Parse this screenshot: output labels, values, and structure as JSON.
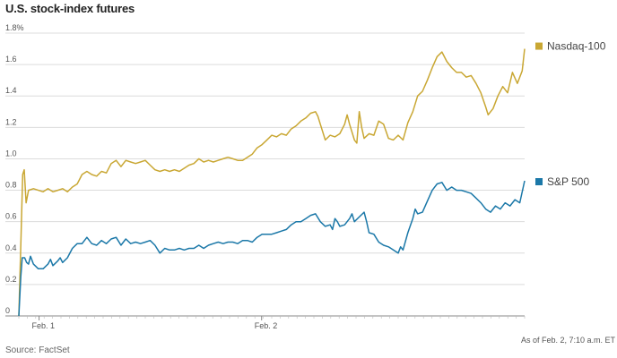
{
  "chart_data": {
    "type": "line",
    "title": "U.S. stock-index futures",
    "yunit": "%",
    "ylim": [
      0,
      1.8
    ],
    "yticks": [
      0,
      0.2,
      0.4,
      0.6,
      0.8,
      1.0,
      1.2,
      1.4,
      1.6,
      1.8
    ],
    "ytick_labels": [
      "0",
      "0.2",
      "0.4",
      "0.6",
      "0.8",
      "1.0",
      "1.2",
      "1.4",
      "1.6",
      "1.8%"
    ],
    "xlim": [
      0,
      1
    ],
    "xticks": [
      {
        "label": "Feb. 1",
        "x": 0.04
      },
      {
        "label": "Feb. 2",
        "x": 0.48
      }
    ],
    "grid": true,
    "legend_position": "right",
    "series": [
      {
        "name": "Nasdaq-100",
        "color": "#c9a733",
        "points": [
          [
            0.0,
            0.0
          ],
          [
            0.004,
            0.45
          ],
          [
            0.008,
            0.9
          ],
          [
            0.011,
            0.93
          ],
          [
            0.015,
            0.72
          ],
          [
            0.02,
            0.8
          ],
          [
            0.03,
            0.81
          ],
          [
            0.04,
            0.8
          ],
          [
            0.05,
            0.79
          ],
          [
            0.06,
            0.81
          ],
          [
            0.07,
            0.79
          ],
          [
            0.08,
            0.8
          ],
          [
            0.09,
            0.81
          ],
          [
            0.1,
            0.79
          ],
          [
            0.11,
            0.82
          ],
          [
            0.12,
            0.84
          ],
          [
            0.13,
            0.9
          ],
          [
            0.14,
            0.92
          ],
          [
            0.15,
            0.9
          ],
          [
            0.16,
            0.89
          ],
          [
            0.17,
            0.92
          ],
          [
            0.18,
            0.91
          ],
          [
            0.19,
            0.97
          ],
          [
            0.2,
            0.99
          ],
          [
            0.21,
            0.95
          ],
          [
            0.22,
            0.99
          ],
          [
            0.23,
            0.98
          ],
          [
            0.24,
            0.97
          ],
          [
            0.25,
            0.98
          ],
          [
            0.26,
            0.99
          ],
          [
            0.27,
            0.96
          ],
          [
            0.28,
            0.93
          ],
          [
            0.29,
            0.92
          ],
          [
            0.3,
            0.93
          ],
          [
            0.31,
            0.92
          ],
          [
            0.32,
            0.93
          ],
          [
            0.33,
            0.92
          ],
          [
            0.34,
            0.94
          ],
          [
            0.35,
            0.96
          ],
          [
            0.36,
            0.97
          ],
          [
            0.37,
            1.0
          ],
          [
            0.38,
            0.98
          ],
          [
            0.39,
            0.99
          ],
          [
            0.4,
            0.98
          ],
          [
            0.41,
            0.99
          ],
          [
            0.42,
            1.0
          ],
          [
            0.43,
            1.01
          ],
          [
            0.44,
            1.0
          ],
          [
            0.45,
            0.99
          ],
          [
            0.46,
            0.99
          ],
          [
            0.47,
            1.01
          ],
          [
            0.48,
            1.03
          ],
          [
            0.49,
            1.07
          ],
          [
            0.5,
            1.09
          ],
          [
            0.51,
            1.12
          ],
          [
            0.52,
            1.15
          ],
          [
            0.53,
            1.14
          ],
          [
            0.54,
            1.16
          ],
          [
            0.55,
            1.15
          ],
          [
            0.56,
            1.19
          ],
          [
            0.57,
            1.21
          ],
          [
            0.58,
            1.24
          ],
          [
            0.59,
            1.26
          ],
          [
            0.6,
            1.29
          ],
          [
            0.61,
            1.3
          ],
          [
            0.615,
            1.27
          ],
          [
            0.62,
            1.22
          ],
          [
            0.63,
            1.12
          ],
          [
            0.64,
            1.15
          ],
          [
            0.65,
            1.14
          ],
          [
            0.66,
            1.16
          ],
          [
            0.67,
            1.22
          ],
          [
            0.675,
            1.28
          ],
          [
            0.68,
            1.22
          ],
          [
            0.69,
            1.12
          ],
          [
            0.695,
            1.1
          ],
          [
            0.7,
            1.3
          ],
          [
            0.705,
            1.2
          ],
          [
            0.71,
            1.13
          ],
          [
            0.72,
            1.16
          ],
          [
            0.73,
            1.15
          ],
          [
            0.74,
            1.24
          ],
          [
            0.75,
            1.22
          ],
          [
            0.76,
            1.13
          ],
          [
            0.77,
            1.12
          ],
          [
            0.78,
            1.15
          ],
          [
            0.79,
            1.12
          ],
          [
            0.8,
            1.23
          ],
          [
            0.81,
            1.3
          ],
          [
            0.82,
            1.4
          ],
          [
            0.83,
            1.43
          ],
          [
            0.84,
            1.5
          ],
          [
            0.85,
            1.58
          ],
          [
            0.86,
            1.65
          ],
          [
            0.87,
            1.68
          ],
          [
            0.88,
            1.62
          ],
          [
            0.89,
            1.58
          ],
          [
            0.9,
            1.55
          ],
          [
            0.91,
            1.55
          ],
          [
            0.92,
            1.52
          ],
          [
            0.93,
            1.53
          ],
          [
            0.94,
            1.48
          ],
          [
            0.95,
            1.42
          ],
          [
            0.96,
            1.33
          ],
          [
            0.965,
            1.28
          ],
          [
            0.975,
            1.32
          ],
          [
            0.985,
            1.4
          ],
          [
            0.995,
            1.46
          ],
          [
            1.005,
            1.42
          ],
          [
            1.015,
            1.55
          ],
          [
            1.025,
            1.48
          ],
          [
            1.035,
            1.56
          ],
          [
            1.04,
            1.7
          ]
        ]
      },
      {
        "name": "S&P 500",
        "color": "#1b78a8",
        "points": [
          [
            0.0,
            0.0
          ],
          [
            0.004,
            0.25
          ],
          [
            0.007,
            0.37
          ],
          [
            0.012,
            0.37
          ],
          [
            0.016,
            0.34
          ],
          [
            0.02,
            0.33
          ],
          [
            0.024,
            0.38
          ],
          [
            0.03,
            0.33
          ],
          [
            0.04,
            0.3
          ],
          [
            0.05,
            0.3
          ],
          [
            0.06,
            0.33
          ],
          [
            0.065,
            0.36
          ],
          [
            0.07,
            0.32
          ],
          [
            0.08,
            0.35
          ],
          [
            0.085,
            0.37
          ],
          [
            0.09,
            0.34
          ],
          [
            0.1,
            0.37
          ],
          [
            0.11,
            0.43
          ],
          [
            0.12,
            0.46
          ],
          [
            0.13,
            0.46
          ],
          [
            0.14,
            0.5
          ],
          [
            0.15,
            0.46
          ],
          [
            0.16,
            0.45
          ],
          [
            0.17,
            0.48
          ],
          [
            0.18,
            0.46
          ],
          [
            0.19,
            0.49
          ],
          [
            0.2,
            0.5
          ],
          [
            0.21,
            0.45
          ],
          [
            0.22,
            0.49
          ],
          [
            0.23,
            0.46
          ],
          [
            0.24,
            0.47
          ],
          [
            0.25,
            0.46
          ],
          [
            0.26,
            0.47
          ],
          [
            0.27,
            0.48
          ],
          [
            0.28,
            0.45
          ],
          [
            0.29,
            0.4
          ],
          [
            0.3,
            0.43
          ],
          [
            0.31,
            0.42
          ],
          [
            0.32,
            0.42
          ],
          [
            0.33,
            0.43
          ],
          [
            0.34,
            0.42
          ],
          [
            0.35,
            0.43
          ],
          [
            0.36,
            0.43
          ],
          [
            0.37,
            0.45
          ],
          [
            0.38,
            0.43
          ],
          [
            0.39,
            0.45
          ],
          [
            0.4,
            0.46
          ],
          [
            0.41,
            0.47
          ],
          [
            0.42,
            0.46
          ],
          [
            0.43,
            0.47
          ],
          [
            0.44,
            0.47
          ],
          [
            0.45,
            0.46
          ],
          [
            0.46,
            0.48
          ],
          [
            0.47,
            0.48
          ],
          [
            0.48,
            0.47
          ],
          [
            0.49,
            0.5
          ],
          [
            0.5,
            0.52
          ],
          [
            0.51,
            0.52
          ],
          [
            0.52,
            0.52
          ],
          [
            0.53,
            0.53
          ],
          [
            0.54,
            0.54
          ],
          [
            0.55,
            0.55
          ],
          [
            0.56,
            0.58
          ],
          [
            0.57,
            0.6
          ],
          [
            0.58,
            0.6
          ],
          [
            0.59,
            0.62
          ],
          [
            0.6,
            0.64
          ],
          [
            0.61,
            0.65
          ],
          [
            0.62,
            0.6
          ],
          [
            0.63,
            0.57
          ],
          [
            0.64,
            0.58
          ],
          [
            0.645,
            0.55
          ],
          [
            0.65,
            0.62
          ],
          [
            0.655,
            0.6
          ],
          [
            0.66,
            0.57
          ],
          [
            0.67,
            0.58
          ],
          [
            0.68,
            0.62
          ],
          [
            0.685,
            0.65
          ],
          [
            0.69,
            0.6
          ],
          [
            0.7,
            0.63
          ],
          [
            0.71,
            0.66
          ],
          [
            0.715,
            0.6
          ],
          [
            0.72,
            0.53
          ],
          [
            0.73,
            0.52
          ],
          [
            0.74,
            0.47
          ],
          [
            0.75,
            0.45
          ],
          [
            0.76,
            0.44
          ],
          [
            0.77,
            0.42
          ],
          [
            0.78,
            0.4
          ],
          [
            0.785,
            0.44
          ],
          [
            0.79,
            0.42
          ],
          [
            0.8,
            0.53
          ],
          [
            0.81,
            0.62
          ],
          [
            0.815,
            0.68
          ],
          [
            0.82,
            0.65
          ],
          [
            0.83,
            0.66
          ],
          [
            0.84,
            0.73
          ],
          [
            0.85,
            0.8
          ],
          [
            0.86,
            0.84
          ],
          [
            0.87,
            0.85
          ],
          [
            0.88,
            0.8
          ],
          [
            0.89,
            0.82
          ],
          [
            0.9,
            0.8
          ],
          [
            0.91,
            0.8
          ],
          [
            0.92,
            0.79
          ],
          [
            0.93,
            0.78
          ],
          [
            0.94,
            0.75
          ],
          [
            0.95,
            0.72
          ],
          [
            0.96,
            0.68
          ],
          [
            0.97,
            0.66
          ],
          [
            0.98,
            0.7
          ],
          [
            0.99,
            0.68
          ],
          [
            1.0,
            0.72
          ],
          [
            1.01,
            0.7
          ],
          [
            1.02,
            0.74
          ],
          [
            1.03,
            0.72
          ],
          [
            1.04,
            0.86
          ]
        ]
      }
    ]
  },
  "footer": {
    "source": "Source: FactSet",
    "as_of": "As of Feb. 2, 7:10 a.m. ET"
  }
}
